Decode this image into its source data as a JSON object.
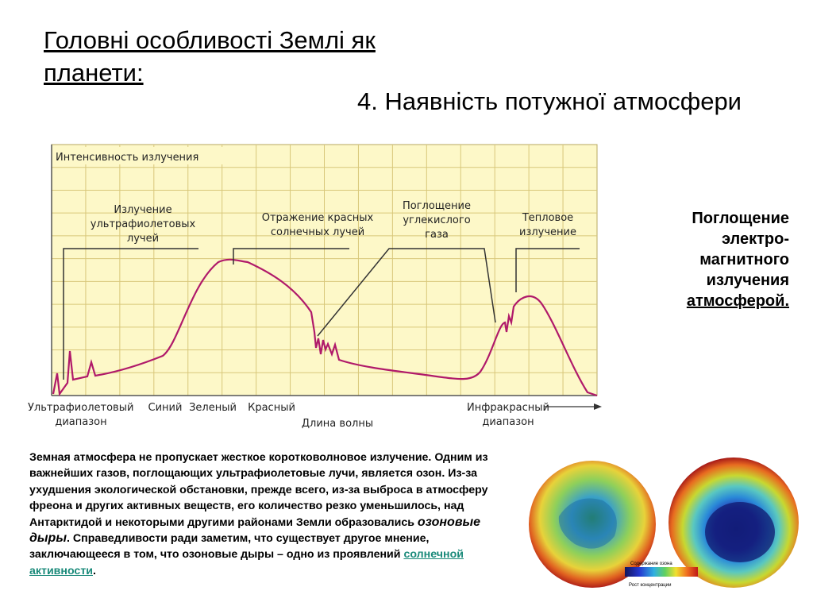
{
  "slide": {
    "title": "Головні особливості Землі як планети:",
    "subtitle": "4. Наявність потужної атмосфери"
  },
  "side_note": {
    "line1": "Поглощение",
    "line2": "электро-",
    "line3": "магнитного",
    "line4": "излучения",
    "line5": "атмосферой."
  },
  "body_text": {
    "part1": "Земная атмосфера не пропускает жесткое коротковолновое излучение. Одним из важнейших газов, поглощающих ультрафиолетовые лучи, является озон. Из-за ухудшения экологической обстановки, прежде всего, из-за выброса в атмосферу фреона и других активных веществ, его количество резко уменьшилось, над Антарктидой и некоторыми другими районами Земли образовались ",
    "emphasis": "озоновые дыры",
    "part2": ". Справедливости ради заметим, что существует другое мнение, заключающееся в том, что озоновые дыры – одно из проявлений ",
    "link": "солнечной активности",
    "part3": "."
  },
  "globes": {
    "legend_title": "Содержание озона",
    "legend_caption": "Рост концентрации"
  },
  "chart_data": {
    "type": "line",
    "title": "Интенсивность излучения",
    "xlabel": "Длина волны",
    "x_tick_labels": [
      {
        "line1": "Ультрафиолетовый",
        "line2": "диапазон"
      },
      {
        "line1": "Синий",
        "line2": ""
      },
      {
        "line1": "Зеленый",
        "line2": ""
      },
      {
        "line1": "Красный",
        "line2": ""
      },
      {
        "line1": "Инфракрасный",
        "line2": "диапазон"
      }
    ],
    "annotations": [
      {
        "lines": [
          "Излучение",
          "ультрафиолетовых",
          "лучей"
        ]
      },
      {
        "lines": [
          "Отражение красных",
          "солнечных лучей"
        ]
      },
      {
        "lines": [
          "Поглощение",
          "углекислого",
          "газа"
        ]
      },
      {
        "lines": [
          "Тепловое",
          "излучение"
        ]
      }
    ],
    "grid": true,
    "background": "#fdf8c8",
    "grid_color": "#d8c77a",
    "line_color": "#b01a6a"
  }
}
